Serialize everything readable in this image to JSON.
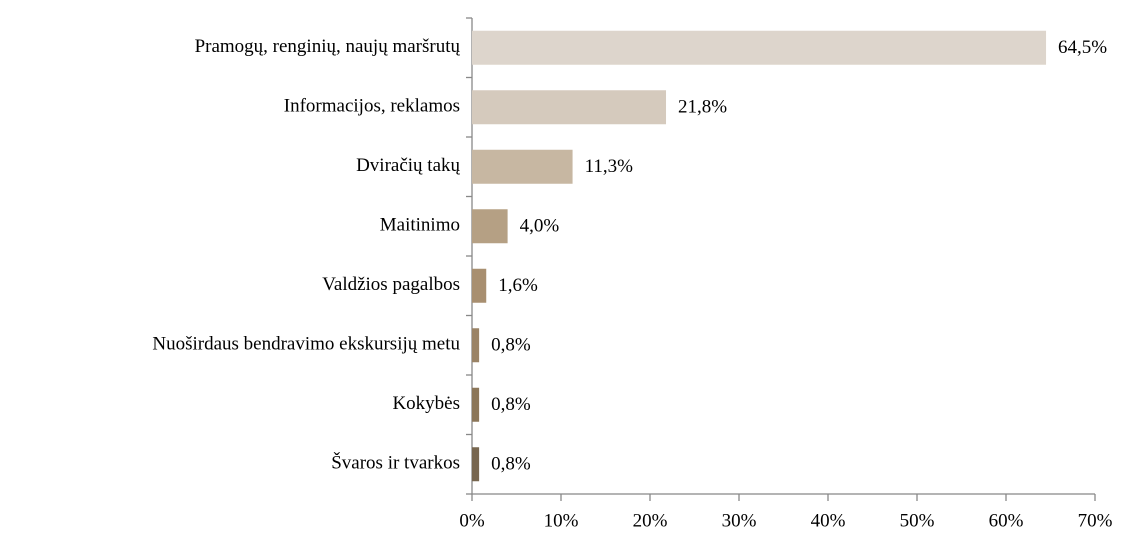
{
  "chart_data": {
    "type": "bar",
    "orientation": "horizontal",
    "categories": [
      "Pramogų, renginių, naujų maršrutų",
      "Informacijos, reklamos",
      "Dviračių takų",
      "Maitinimo",
      "Valdžios pagalbos",
      "Nuoširdaus bendravimo ekskursijų metu",
      "Kokybės",
      "Švaros ir tvarkos"
    ],
    "values": [
      64.5,
      21.8,
      11.3,
      4.0,
      1.6,
      0.8,
      0.8,
      0.8
    ],
    "value_labels": [
      "64,5%",
      "21,8%",
      "11,3%",
      "4,0%",
      "1,6%",
      "0,8%",
      "0,8%",
      "0,8%"
    ],
    "colors": [
      "#ddd5cc",
      "#d5cabd",
      "#c7b7a2",
      "#b5a084",
      "#a88f70",
      "#9a8366",
      "#8b7659",
      "#77664f"
    ],
    "xlim": [
      0,
      70
    ],
    "xticks": [
      {
        "value": 0,
        "label": "0%"
      },
      {
        "value": 10,
        "label": "10%"
      },
      {
        "value": 20,
        "label": "20%"
      },
      {
        "value": 30,
        "label": "30%"
      },
      {
        "value": 40,
        "label": "40%"
      },
      {
        "value": 50,
        "label": "50%"
      },
      {
        "value": 60,
        "label": "60%"
      },
      {
        "value": 70,
        "label": "70%"
      }
    ],
    "grid": false
  }
}
